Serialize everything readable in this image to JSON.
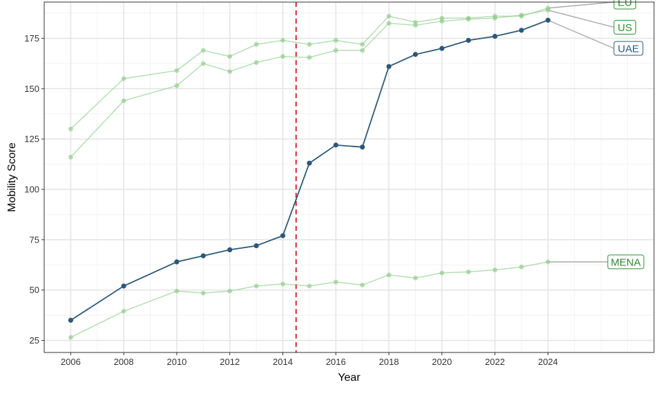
{
  "chart_data": {
    "type": "line",
    "title": "",
    "xlabel": "Year",
    "ylabel": "Mobility Score",
    "xlim": [
      2005.0,
      2028.0
    ],
    "ylim": [
      19,
      193
    ],
    "x_major_ticks": [
      2006,
      2008,
      2010,
      2012,
      2014,
      2016,
      2018,
      2020,
      2022,
      2024
    ],
    "y_major_ticks": [
      25,
      50,
      75,
      100,
      125,
      150,
      175
    ],
    "grid": true,
    "reference_line": {
      "x": 2014.5,
      "color": "#d62728",
      "style": "dashed"
    },
    "series": [
      {
        "name": "EU",
        "highlight": false,
        "color": "#8fcc8a",
        "label_color": "#2e8b2e",
        "points": [
          [
            2006,
            130
          ],
          [
            2008,
            155
          ],
          [
            2010,
            159
          ],
          [
            2011,
            169
          ],
          [
            2012,
            166
          ],
          [
            2013,
            172
          ],
          [
            2014,
            174
          ],
          [
            2015,
            172
          ],
          [
            2016,
            174
          ],
          [
            2017,
            172
          ],
          [
            2018,
            186
          ],
          [
            2019,
            183
          ],
          [
            2020,
            185
          ],
          [
            2021,
            185
          ],
          [
            2022,
            186
          ],
          [
            2023,
            186
          ],
          [
            2024,
            190
          ]
        ]
      },
      {
        "name": "US",
        "highlight": false,
        "color": "#8fcc8a",
        "label_color": "#2e8b2e",
        "points": [
          [
            2006,
            116
          ],
          [
            2008,
            144
          ],
          [
            2010,
            151.5
          ],
          [
            2011,
            162.5
          ],
          [
            2012,
            158.5
          ],
          [
            2013,
            163
          ],
          [
            2014,
            166
          ],
          [
            2015,
            165.5
          ],
          [
            2016,
            169
          ],
          [
            2017,
            169
          ],
          [
            2018,
            182.5
          ],
          [
            2019,
            181.5
          ],
          [
            2020,
            183.5
          ],
          [
            2021,
            184.5
          ],
          [
            2022,
            185
          ],
          [
            2023,
            186.5
          ],
          [
            2024,
            189
          ]
        ]
      },
      {
        "name": "UAE",
        "highlight": true,
        "color": "#2c5878",
        "label_color": "#2c5878",
        "points": [
          [
            2006,
            35
          ],
          [
            2008,
            52
          ],
          [
            2010,
            64
          ],
          [
            2011,
            67
          ],
          [
            2012,
            70
          ],
          [
            2013,
            72
          ],
          [
            2014,
            77
          ],
          [
            2015,
            113
          ],
          [
            2016,
            122
          ],
          [
            2017,
            121
          ],
          [
            2018,
            161
          ],
          [
            2019,
            167
          ],
          [
            2020,
            170
          ],
          [
            2021,
            174
          ],
          [
            2022,
            176
          ],
          [
            2023,
            179
          ],
          [
            2024,
            184
          ]
        ]
      },
      {
        "name": "MENA",
        "highlight": false,
        "color": "#8fcc8a",
        "label_color": "#2e8b2e",
        "points": [
          [
            2006,
            26.5
          ],
          [
            2008,
            39.5
          ],
          [
            2010,
            49.5
          ],
          [
            2011,
            48.5
          ],
          [
            2012,
            49.5
          ],
          [
            2013,
            52
          ],
          [
            2014,
            53
          ],
          [
            2015,
            52
          ],
          [
            2016,
            54
          ],
          [
            2017,
            52.5
          ],
          [
            2018,
            57.5
          ],
          [
            2019,
            56
          ],
          [
            2020,
            58.5
          ],
          [
            2021,
            59
          ],
          [
            2022,
            60
          ],
          [
            2023,
            61.5
          ],
          [
            2024,
            64
          ]
        ]
      }
    ],
    "end_labels": [
      {
        "series": "EU",
        "text": "EU",
        "label_y": 193
      },
      {
        "series": "US",
        "text": "US",
        "label_y": 180.5
      },
      {
        "series": "UAE",
        "text": "UAE",
        "label_y": 170
      },
      {
        "series": "MENA",
        "text": "MENA",
        "label_y": 64
      }
    ]
  }
}
